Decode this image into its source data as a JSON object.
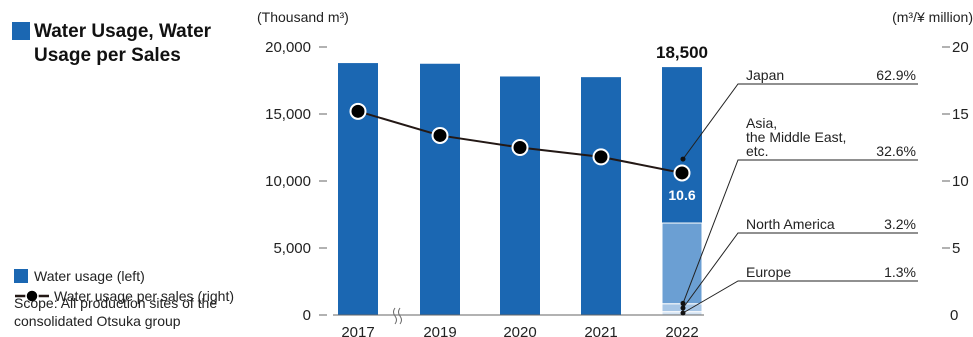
{
  "title": "Water Usage, Water Usage per Sales",
  "legend": {
    "bar_label": "Water usage (left)",
    "line_label": "Water usage per sales (right)"
  },
  "scope": "Scope: All production sites of the consolidated Otsuka group",
  "colors": {
    "bar": "#1b67b2",
    "asia": "#6b9fd3",
    "north_america": "#a7c6e6",
    "europe": "#d3e3f3",
    "line": "#231815",
    "marker": "#000000"
  },
  "chart_data": {
    "type": "bar",
    "categories": [
      "2017",
      "2019",
      "2020",
      "2021",
      "2022"
    ],
    "left_axis_unit": "(Thousand m³)",
    "right_axis_unit": "(m³/¥ million)",
    "left_ticks": [
      "0",
      "5,000",
      "10,000",
      "15,000",
      "20,000"
    ],
    "right_ticks": [
      "0",
      "5",
      "10",
      "15",
      "20"
    ],
    "ylim_left": [
      0,
      20000
    ],
    "ylim_right": [
      0,
      20
    ],
    "series": [
      {
        "name": "Water usage (left)",
        "axis": "left",
        "values": [
          18800,
          18750,
          17800,
          17750,
          18500
        ]
      },
      {
        "name": "Water usage per sales (right)",
        "axis": "right",
        "values": [
          15.2,
          13.4,
          12.5,
          11.8,
          10.6
        ]
      }
    ],
    "breakdown_2022": [
      {
        "region": "Japan",
        "share": "62.9%",
        "fraction": 0.629
      },
      {
        "region": "Asia, the Middle East, etc.",
        "lines": [
          "Asia,",
          "the Middle East,",
          "etc."
        ],
        "share": "32.6%",
        "fraction": 0.326
      },
      {
        "region": "North America",
        "share": "3.2%",
        "fraction": 0.032
      },
      {
        "region": "Europe",
        "share": "1.3%",
        "fraction": 0.013
      }
    ],
    "annotations": {
      "total_2022": "18,500",
      "line_2022": "10.6"
    },
    "axis_break_after": "2017",
    "grid": false
  }
}
